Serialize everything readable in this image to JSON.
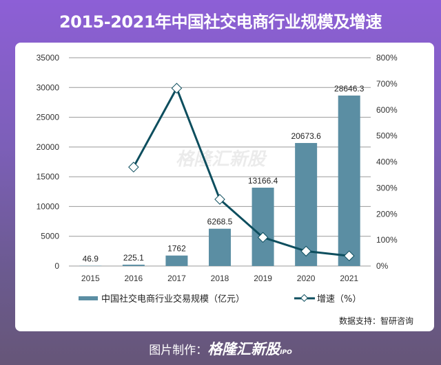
{
  "title": "2015-2021年中国社交电商行业规模及增速",
  "source": "数据支持：智研咨询",
  "footer": {
    "label": "图片制作：",
    "brand": "格隆汇新股",
    "brand_suffix": "IPO"
  },
  "watermark": "格隆汇新股",
  "colors": {
    "bar": "#5b8ea3",
    "line": "#0d4e5e"
  },
  "chart_data": {
    "type": "bar+line",
    "categories": [
      "2015",
      "2016",
      "2017",
      "2018",
      "2019",
      "2020",
      "2021"
    ],
    "series": [
      {
        "name": "中国社交电商行业交易规模（亿元）",
        "type": "bar",
        "axis": "left",
        "values": [
          46.9,
          225.1,
          1762,
          6268.5,
          13166.4,
          20673.6,
          28646.3
        ],
        "labels": [
          "46.9",
          "225.1",
          "1762",
          "6268.5",
          "13166.4",
          "20673.6",
          "28646.3"
        ]
      },
      {
        "name": "增速（%）",
        "type": "line",
        "axis": "right",
        "values": [
          null,
          380,
          683,
          256,
          110,
          57,
          39
        ]
      }
    ],
    "left_axis": {
      "ylim": [
        0,
        35000
      ],
      "ticks": [
        "0",
        "5000",
        "10000",
        "15000",
        "20000",
        "25000",
        "30000",
        "35000"
      ]
    },
    "right_axis": {
      "ylim": [
        0,
        800
      ],
      "ticks": [
        "0%",
        "100%",
        "200%",
        "300%",
        "400%",
        "500%",
        "600%",
        "700%",
        "800%"
      ]
    },
    "grid": true,
    "legend": "bottom"
  }
}
